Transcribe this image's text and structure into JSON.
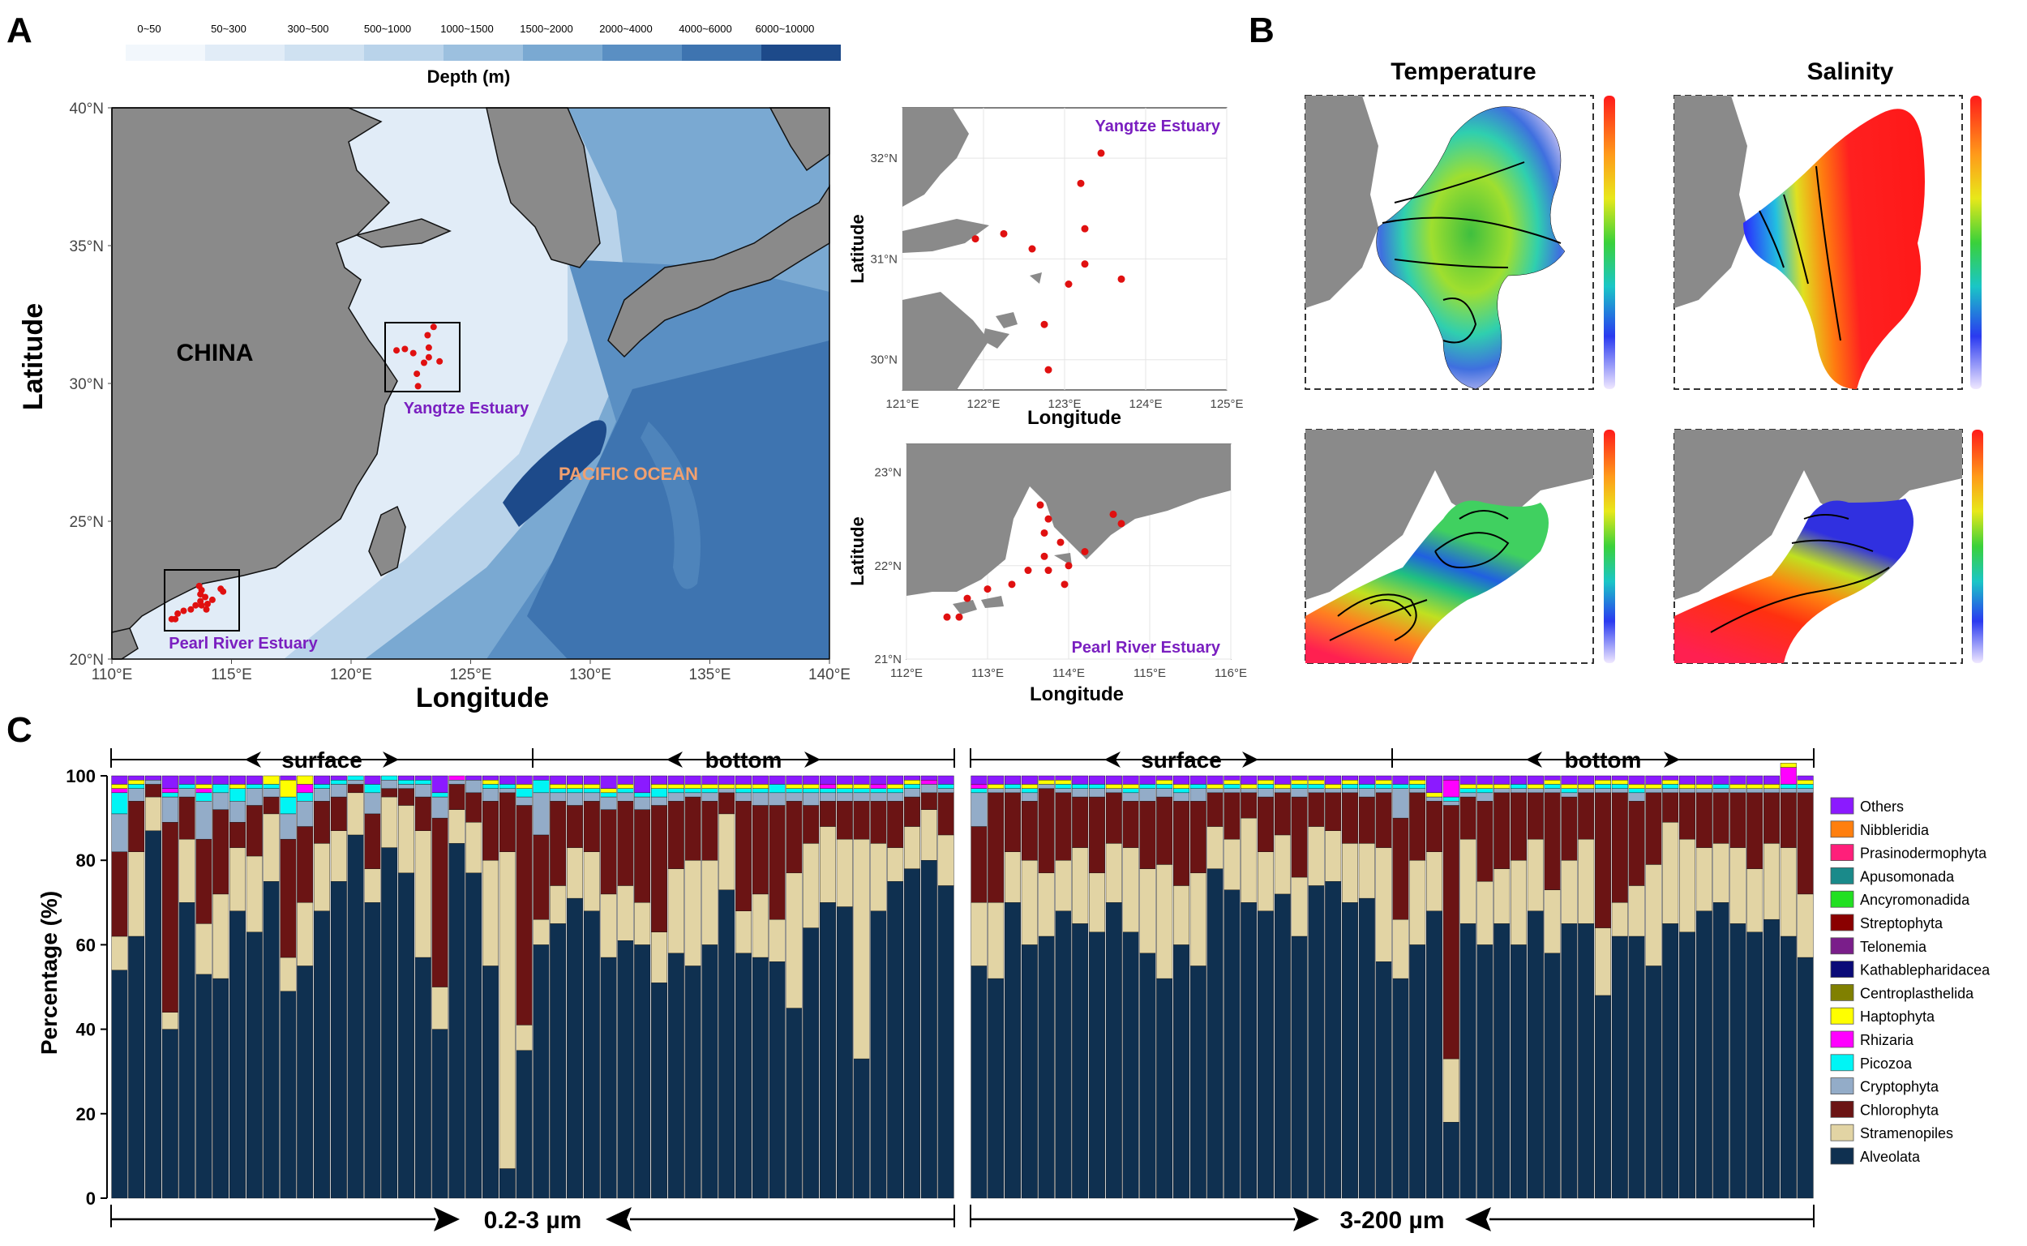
{
  "panel_labels": {
    "a": "A",
    "b": "B",
    "c": "C"
  },
  "depth_legend": {
    "title": "Depth (m)",
    "bins": [
      "0~50",
      "50~300",
      "300~500",
      "500~1000",
      "1000~1500",
      "1500~2000",
      "2000~4000",
      "4000~6000",
      "6000~10000"
    ],
    "colors": [
      "#f2f7fc",
      "#e1ecf7",
      "#cfe1f1",
      "#b9d3ea",
      "#9cc0df",
      "#7aa9d2",
      "#5a8fc3",
      "#3e74b0",
      "#1d4a8a"
    ]
  },
  "main_map": {
    "y_label": "Latitude",
    "x_label": "Longitude",
    "y_ticks": [
      "40°N",
      "35°N",
      "30°N",
      "25°N",
      "20°N"
    ],
    "x_ticks": [
      "110°E",
      "115°E",
      "120°E",
      "125°E",
      "130°E",
      "135°E",
      "140°E"
    ],
    "label_china": "CHINA",
    "label_pacific": "PACIFIC OCEAN",
    "label_yangtze": "Yangtze Estuary",
    "label_pearl": "Pearl River Estuary"
  },
  "yangtze_inset": {
    "title": "Yangtze Estuary",
    "y_label": "Latitude",
    "x_label": "Longitude",
    "y_ticks": [
      "32°N",
      "31°N",
      "30°N"
    ],
    "x_ticks": [
      "121°E",
      "122°E",
      "123°E",
      "124°E",
      "125°E"
    ],
    "stations": [
      [
        123.45,
        32.05
      ],
      [
        123.2,
        31.75
      ],
      [
        122.25,
        31.25
      ],
      [
        122.6,
        31.1
      ],
      [
        123.25,
        31.3
      ],
      [
        121.9,
        31.2
      ],
      [
        123.25,
        30.95
      ],
      [
        123.05,
        30.75
      ],
      [
        123.7,
        30.8
      ],
      [
        122.75,
        30.35
      ],
      [
        122.8,
        29.9
      ]
    ]
  },
  "pearl_inset": {
    "title": "Pearl River Estuary",
    "y_label": "Latitude",
    "x_label": "Longitude",
    "y_ticks": [
      "23°N",
      "22°N",
      "21°N"
    ],
    "x_ticks": [
      "112°E",
      "113°E",
      "114°E",
      "115°E",
      "116°E"
    ],
    "stations": [
      [
        113.65,
        22.65
      ],
      [
        113.75,
        22.5
      ],
      [
        113.7,
        22.35
      ],
      [
        114.55,
        22.55
      ],
      [
        114.65,
        22.45
      ],
      [
        113.9,
        22.25
      ],
      [
        114.0,
        22.0
      ],
      [
        113.7,
        22.1
      ],
      [
        113.5,
        21.95
      ],
      [
        113.75,
        21.95
      ],
      [
        113.3,
        21.8
      ],
      [
        113.0,
        21.75
      ],
      [
        112.75,
        21.65
      ],
      [
        112.5,
        21.45
      ],
      [
        112.65,
        21.45
      ],
      [
        113.95,
        21.8
      ],
      [
        114.2,
        22.15
      ]
    ]
  },
  "panel_b": {
    "temperature_title": "Temperature",
    "salinity_title": "Salinity"
  },
  "chart_data": {
    "type": "bar",
    "stacked": true,
    "ylabel": "Percentage (%)",
    "ylim": [
      0,
      100
    ],
    "yticks": [
      "0",
      "20",
      "40",
      "60",
      "80",
      "100"
    ],
    "group_labels": [
      "0.2-3 µm",
      "3-200 µm"
    ],
    "section_labels": [
      "surface",
      "bottom",
      "surface",
      "bottom"
    ],
    "samples_per_section": [
      25,
      25,
      25,
      25
    ],
    "legend": [
      "Others",
      "Nibbleridia",
      "Prasinodermophyta",
      "Apusomonada",
      "Ancyromonadida",
      "Streptophyta",
      "Telonemia",
      "Kathablepharidacea",
      "Centroplasthelida",
      "Haptophyta",
      "Rhizaria",
      "Picozoa",
      "Cryptophyta",
      "Chlorophyta",
      "Stramenopiles",
      "Alveolata"
    ],
    "stack_order": [
      "Alveolata",
      "Stramenopiles",
      "Chlorophyta",
      "Cryptophyta",
      "Picozoa",
      "Rhizaria",
      "Haptophyta",
      "Others"
    ],
    "colors": {
      "Others": "#8b1aff",
      "Nibbleridia": "#ff7f0e",
      "Prasinodermophyta": "#ff1f7a",
      "Apusomonada": "#1a8a8a",
      "Ancyromonadida": "#22e022",
      "Streptophyta": "#8a0000",
      "Telonemia": "#7a1e8a",
      "Kathablepharidacea": "#0a0a78",
      "Centroplasthelida": "#808000",
      "Haptophyta": "#ffff00",
      "Rhizaria": "#ff00ff",
      "Picozoa": "#00f5f5",
      "Cryptophyta": "#93acc8",
      "Chlorophyta": "#6b1414",
      "Stramenopiles": "#e2d4a4",
      "Alveolata": "#0f3050"
    },
    "alveolata": [
      54,
      62,
      87,
      40,
      70,
      53,
      52,
      68,
      63,
      75,
      49,
      55,
      68,
      75,
      86,
      70,
      83,
      77,
      57,
      40,
      84,
      77,
      55,
      7,
      35,
      60,
      65,
      71,
      68,
      57,
      61,
      60,
      51,
      58,
      55,
      60,
      73,
      58,
      57,
      56,
      45,
      64,
      70,
      69,
      33,
      68,
      75,
      78,
      80,
      74,
      55,
      52,
      70,
      60,
      62,
      68,
      65,
      63,
      70,
      63,
      58,
      52,
      60,
      55,
      78,
      73,
      70,
      68,
      72,
      62,
      74,
      75,
      70,
      71,
      56,
      52,
      60,
      68,
      18,
      65,
      60,
      65,
      60,
      68,
      58,
      65,
      65,
      48,
      62,
      62,
      55,
      65,
      63,
      68,
      70,
      65,
      63,
      66,
      62,
      57
    ],
    "stramenopiles": [
      8,
      20,
      8,
      4,
      15,
      12,
      20,
      15,
      18,
      16,
      8,
      15,
      16,
      12,
      10,
      8,
      12,
      16,
      30,
      10,
      8,
      12,
      25,
      75,
      6,
      6,
      9,
      12,
      14,
      15,
      13,
      10,
      12,
      20,
      25,
      20,
      18,
      10,
      15,
      10,
      32,
      20,
      18,
      16,
      52,
      16,
      8,
      10,
      12,
      12,
      15,
      18,
      12,
      20,
      15,
      12,
      18,
      14,
      14,
      20,
      20,
      27,
      14,
      22,
      10,
      12,
      20,
      14,
      14,
      14,
      14,
      12,
      14,
      13,
      27,
      14,
      20,
      14,
      15,
      20,
      15,
      13,
      20,
      17,
      15,
      15,
      20,
      16,
      8,
      12,
      24,
      24,
      22,
      15,
      14,
      18,
      15,
      18,
      21,
      15
    ],
    "chlorophyta": [
      20,
      12,
      3,
      45,
      10,
      20,
      20,
      6,
      12,
      4,
      28,
      18,
      10,
      8,
      2,
      13,
      2,
      4,
      8,
      40,
      6,
      7,
      14,
      14,
      52,
      20,
      20,
      10,
      12,
      20,
      20,
      22,
      30,
      16,
      15,
      14,
      5,
      26,
      21,
      27,
      17,
      9,
      6,
      9,
      9,
      10,
      11,
      7,
      4,
      10,
      18,
      26,
      14,
      14,
      20,
      16,
      12,
      18,
      12,
      11,
      16,
      16,
      20,
      17,
      8,
      11,
      6,
      13,
      10,
      19,
      8,
      9,
      12,
      11,
      13,
      24,
      16,
      12,
      60,
      10,
      19,
      18,
      16,
      11,
      23,
      15,
      11,
      32,
      26,
      20,
      17,
      7,
      11,
      13,
      12,
      13,
      18,
      12,
      13,
      24
    ],
    "cryptophyta": [
      9,
      3,
      1,
      6,
      2,
      9,
      4,
      5,
      4,
      2,
      6,
      6,
      3,
      3,
      1,
      5,
      2,
      1,
      3,
      5,
      1,
      3,
      3,
      1,
      2,
      10,
      2,
      3,
      2,
      3,
      2,
      3,
      2,
      2,
      1,
      2,
      1,
      2,
      3,
      3,
      2,
      3,
      2,
      2,
      2,
      2,
      2,
      2,
      2,
      1,
      8,
      1,
      1,
      2,
      1,
      1,
      2,
      2,
      1,
      2,
      3,
      2,
      2,
      3,
      1,
      1,
      1,
      2,
      1,
      2,
      1,
      1,
      1,
      2,
      1,
      7,
      1,
      1,
      1,
      1,
      2,
      1,
      1,
      1,
      1,
      1,
      1,
      1,
      1,
      2,
      1,
      1,
      1,
      1,
      1,
      1,
      1,
      1,
      1,
      1
    ],
    "picozoa": [
      5,
      1,
      0,
      1,
      1,
      2,
      2,
      3,
      1,
      1,
      4,
      2,
      1,
      1,
      1,
      2,
      1,
      1,
      1,
      1,
      0,
      0,
      1,
      1,
      2,
      3,
      1,
      1,
      1,
      1,
      1,
      1,
      2,
      1,
      1,
      1,
      0,
      1,
      1,
      2,
      1,
      1,
      1,
      1,
      1,
      1,
      1,
      1,
      0,
      1,
      1,
      0,
      1,
      1,
      0,
      1,
      1,
      1,
      0,
      1,
      1,
      1,
      1,
      1,
      0,
      1,
      0,
      1,
      0,
      1,
      1,
      0,
      1,
      1,
      1,
      1,
      1,
      0,
      1,
      1,
      1,
      0,
      1,
      0,
      1,
      1,
      0,
      1,
      1,
      1,
      0,
      1,
      0,
      0,
      1,
      0,
      0,
      0,
      1,
      1
    ],
    "rhizaria": [
      1,
      0,
      0,
      1,
      0,
      1,
      0,
      0,
      0,
      0,
      0,
      2,
      0,
      0,
      0,
      0,
      0,
      0,
      0,
      0,
      1,
      0,
      0,
      0,
      0,
      0,
      0,
      0,
      0,
      0,
      0,
      0,
      0,
      0,
      0,
      0,
      0,
      0,
      0,
      0,
      0,
      0,
      1,
      0,
      0,
      1,
      0,
      0,
      1,
      0,
      1,
      0,
      0,
      0,
      0,
      0,
      0,
      0,
      0,
      0,
      0,
      0,
      0,
      0,
      0,
      0,
      0,
      0,
      0,
      0,
      0,
      0,
      0,
      0,
      0,
      0,
      0,
      0,
      4,
      0,
      0,
      0,
      0,
      0,
      0,
      0,
      0,
      0,
      0,
      0,
      0,
      0,
      0,
      0,
      0,
      0,
      0,
      0,
      4,
      0
    ],
    "haptophyta": [
      1,
      1,
      0,
      0,
      0,
      1,
      0,
      1,
      0,
      2,
      4,
      2,
      0,
      0,
      0,
      0,
      0,
      0,
      0,
      0,
      0,
      0,
      1,
      0,
      1,
      0,
      1,
      1,
      1,
      1,
      1,
      0,
      1,
      1,
      1,
      1,
      1,
      1,
      1,
      0,
      1,
      1,
      0,
      1,
      1,
      0,
      1,
      1,
      0,
      0,
      0,
      1,
      0,
      1,
      1,
      1,
      0,
      0,
      1,
      1,
      0,
      1,
      1,
      0,
      1,
      1,
      1,
      1,
      1,
      1,
      1,
      1,
      1,
      0,
      1,
      0,
      1,
      1,
      0,
      1,
      1,
      1,
      0,
      1,
      1,
      1,
      1,
      1,
      1,
      1,
      1,
      1,
      1,
      1,
      0,
      1,
      1,
      1,
      1,
      1
    ]
  }
}
